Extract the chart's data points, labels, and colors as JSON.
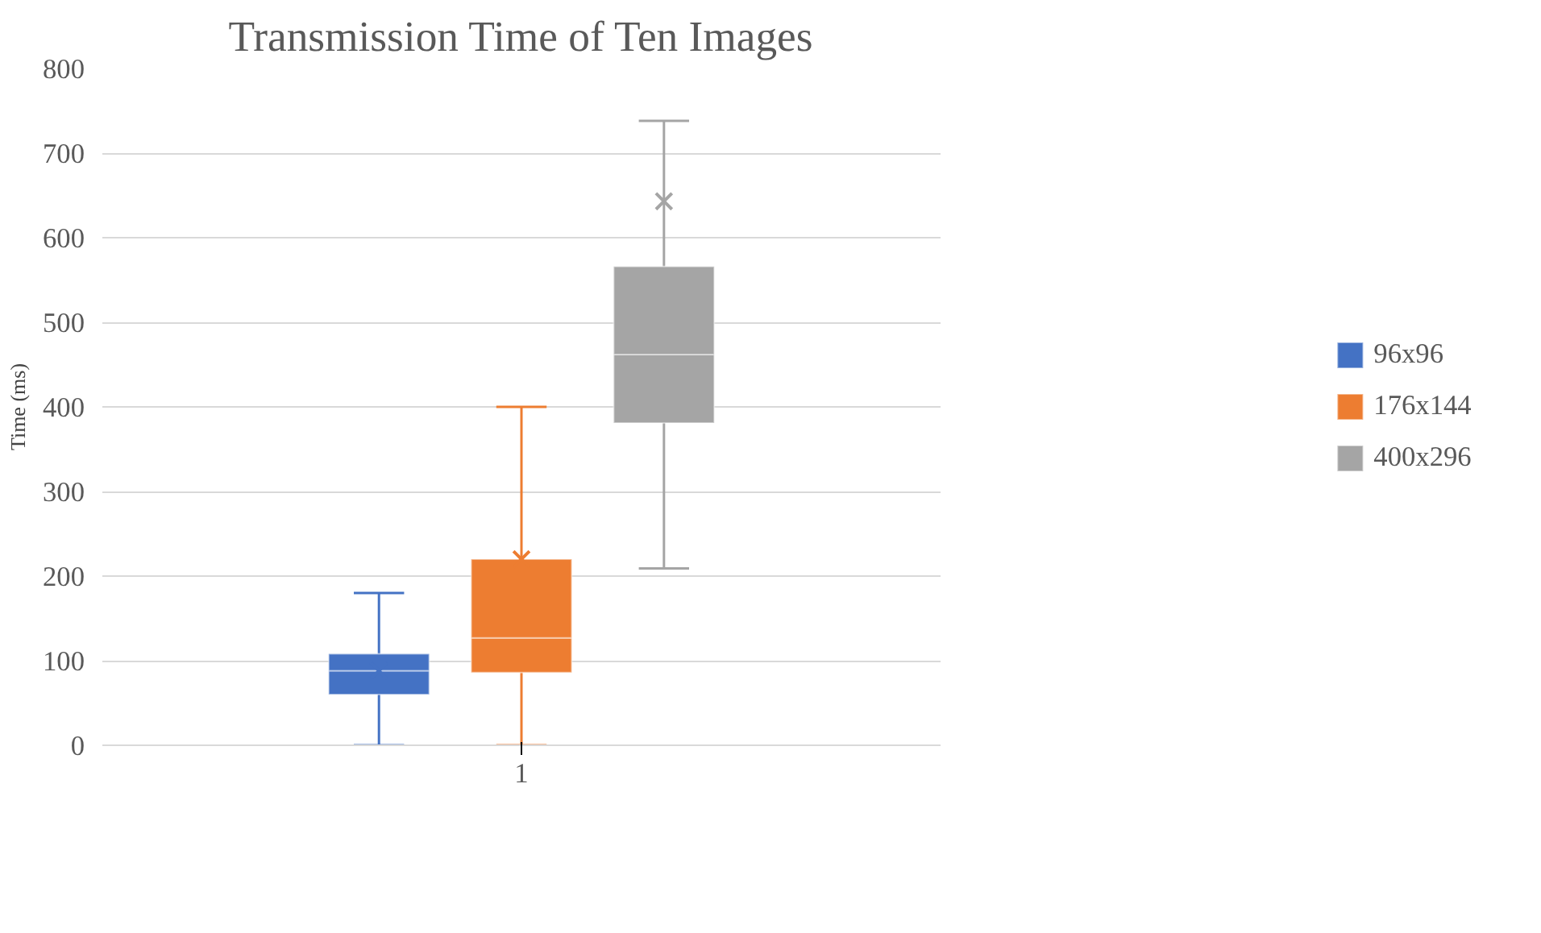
{
  "chart_data": {
    "type": "box",
    "title": "Transmission Time of Ten Images",
    "ylabel": "Time (ms)",
    "categories": [
      "1"
    ],
    "ylim": [
      0,
      800
    ],
    "yticks": [
      0,
      100,
      200,
      300,
      400,
      500,
      600,
      700,
      800
    ],
    "grid": "y",
    "legend": "right",
    "marker": "cross",
    "series": [
      {
        "name": "96x96",
        "color": "#4472c4",
        "boxes": [
          {
            "low": 0,
            "q1": 60,
            "median": 88,
            "q3": 108,
            "high": 180,
            "mean": 88
          }
        ]
      },
      {
        "name": "176x144",
        "color": "#ed7d31",
        "boxes": [
          {
            "low": 0,
            "q1": 86,
            "median": 127,
            "q3": 220,
            "high": 400,
            "mean": 220
          }
        ]
      },
      {
        "name": "400x296",
        "color": "#a5a5a5",
        "boxes": [
          {
            "low": 209,
            "q1": 381,
            "median": 462,
            "q3": 566,
            "high": 738,
            "mean": 643
          }
        ]
      }
    ]
  }
}
